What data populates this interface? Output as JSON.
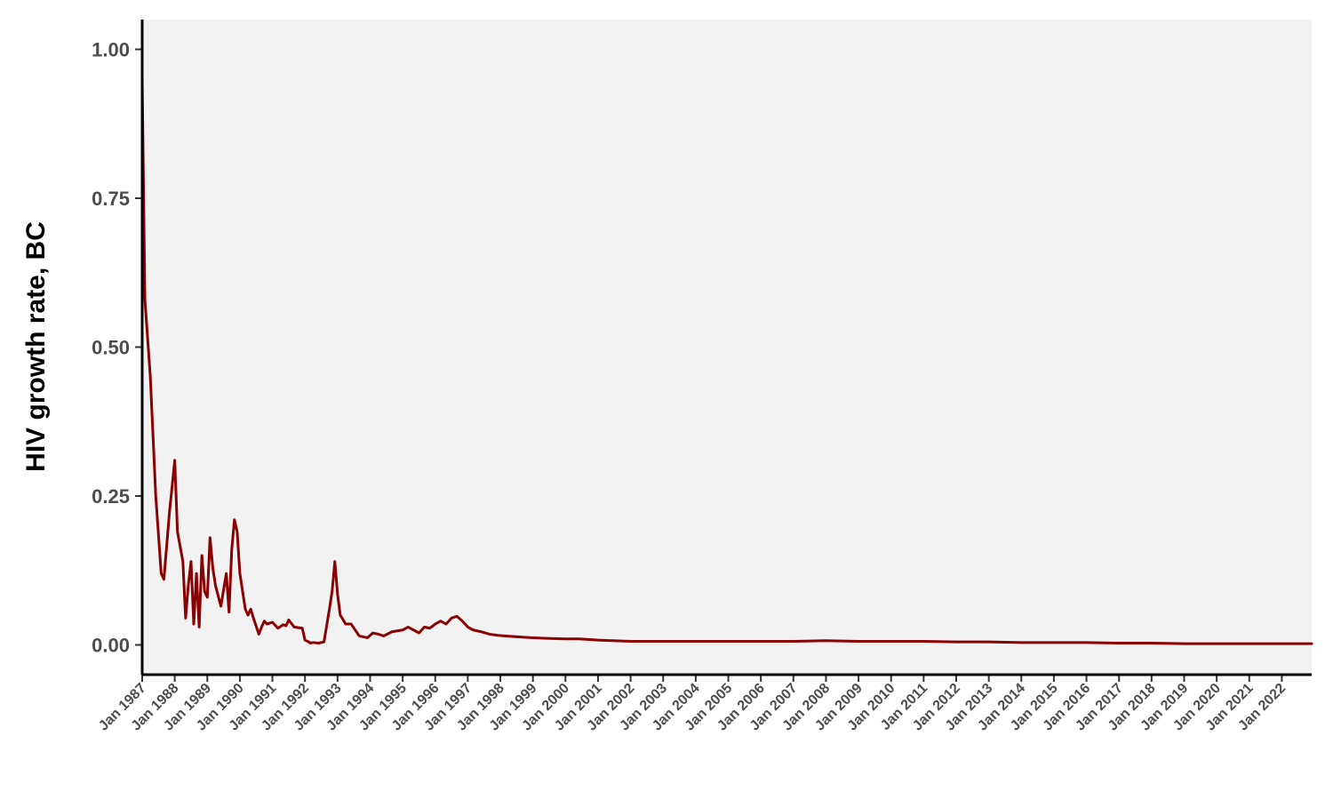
{
  "chart_data": {
    "type": "line",
    "title": "",
    "xlabel": "",
    "ylabel": "HIV growth rate, BC",
    "xlim": [
      "1987-01",
      "2022-12"
    ],
    "ylim": [
      -0.05,
      1.05
    ],
    "yticks": [
      {
        "value": 0.0,
        "label": "0.00"
      },
      {
        "value": 0.25,
        "label": "0.25"
      },
      {
        "value": 0.5,
        "label": "0.50"
      },
      {
        "value": 0.75,
        "label": "0.75"
      },
      {
        "value": 1.0,
        "label": "1.00"
      }
    ],
    "xticks": [
      {
        "value": "1987-01",
        "label": "Jan 1987"
      },
      {
        "value": "1988-01",
        "label": "Jan 1988"
      },
      {
        "value": "1989-01",
        "label": "Jan 1989"
      },
      {
        "value": "1990-01",
        "label": "Jan 1990"
      },
      {
        "value": "1991-01",
        "label": "Jan 1991"
      },
      {
        "value": "1992-01",
        "label": "Jan 1992"
      },
      {
        "value": "1993-01",
        "label": "Jan 1993"
      },
      {
        "value": "1994-01",
        "label": "Jan 1994"
      },
      {
        "value": "1995-01",
        "label": "Jan 1995"
      },
      {
        "value": "1996-01",
        "label": "Jan 1996"
      },
      {
        "value": "1997-01",
        "label": "Jan 1997"
      },
      {
        "value": "1998-01",
        "label": "Jan 1998"
      },
      {
        "value": "1999-01",
        "label": "Jan 1999"
      },
      {
        "value": "2000-01",
        "label": "Jan 2000"
      },
      {
        "value": "2001-01",
        "label": "Jan 2001"
      },
      {
        "value": "2002-01",
        "label": "Jan 2002"
      },
      {
        "value": "2003-01",
        "label": "Jan 2003"
      },
      {
        "value": "2004-01",
        "label": "Jan 2004"
      },
      {
        "value": "2005-01",
        "label": "Jan 2005"
      },
      {
        "value": "2006-01",
        "label": "Jan 2006"
      },
      {
        "value": "2007-01",
        "label": "Jan 2007"
      },
      {
        "value": "2008-01",
        "label": "Jan 2008"
      },
      {
        "value": "2009-01",
        "label": "Jan 2009"
      },
      {
        "value": "2010-01",
        "label": "Jan 2010"
      },
      {
        "value": "2011-01",
        "label": "Jan 2011"
      },
      {
        "value": "2012-01",
        "label": "Jan 2012"
      },
      {
        "value": "2013-01",
        "label": "Jan 2013"
      },
      {
        "value": "2014-01",
        "label": "Jan 2014"
      },
      {
        "value": "2015-01",
        "label": "Jan 2015"
      },
      {
        "value": "2016-01",
        "label": "Jan 2016"
      },
      {
        "value": "2017-01",
        "label": "Jan 2017"
      },
      {
        "value": "2018-01",
        "label": "Jan 2018"
      },
      {
        "value": "2019-01",
        "label": "Jan 2019"
      },
      {
        "value": "2020-01",
        "label": "Jan 2020"
      },
      {
        "value": "2021-01",
        "label": "Jan 2021"
      },
      {
        "value": "2022-01",
        "label": "Jan 2022"
      }
    ],
    "grid": false,
    "legend": "none",
    "colors": {
      "line": "#8b0000",
      "panel_background": "#f2f2f2",
      "axis": "#000000",
      "tick_label": "#4d4d4d",
      "axis_title": "#000000"
    },
    "series": [
      {
        "x": [
          "1987-01",
          "1987-02",
          "1987-04",
          "1987-06",
          "1987-08",
          "1987-09",
          "1987-11",
          "1988-01",
          "1988-02",
          "1988-04",
          "1988-05",
          "1988-06",
          "1988-07",
          "1988-08",
          "1988-09",
          "1988-10",
          "1988-11",
          "1988-12",
          "1989-01",
          "1989-02",
          "1989-03",
          "1989-04",
          "1989-06",
          "1989-08",
          "1989-09",
          "1989-10",
          "1989-11",
          "1989-12",
          "1990-01",
          "1990-03",
          "1990-04",
          "1990-05",
          "1990-06",
          "1990-08",
          "1990-09",
          "1990-10",
          "1990-11",
          "1991-01",
          "1991-03",
          "1991-05",
          "1991-06",
          "1991-07",
          "1991-09",
          "1991-12",
          "1992-01",
          "1992-02",
          "1992-03",
          "1992-04",
          "1992-06",
          "1992-08",
          "1992-10",
          "1992-11",
          "1992-12",
          "1993-01",
          "1993-02",
          "1993-04",
          "1993-06",
          "1993-09",
          "1993-12",
          "1994-02",
          "1994-04",
          "1994-06",
          "1994-09",
          "1995-01",
          "1995-03",
          "1995-05",
          "1995-07",
          "1995-09",
          "1995-11",
          "1996-01",
          "1996-03",
          "1996-05",
          "1996-07",
          "1996-09",
          "1996-11",
          "1997-01",
          "1997-03",
          "1997-06",
          "1997-09",
          "1997-12",
          "1998-03",
          "1998-06",
          "1998-09",
          "1999-01",
          "1999-06",
          "2000-01",
          "2000-06",
          "2001-01",
          "2002-01",
          "2003-01",
          "2004-01",
          "2005-01",
          "2006-01",
          "2007-01",
          "2008-01",
          "2009-01",
          "2010-01",
          "2011-01",
          "2012-01",
          "2013-01",
          "2014-01",
          "2015-01",
          "2016-01",
          "2017-01",
          "2018-01",
          "2019-01",
          "2020-01",
          "2021-01",
          "2022-01",
          "2022-12"
        ],
        "y": [
          0.95,
          0.58,
          0.45,
          0.25,
          0.12,
          0.11,
          0.22,
          0.31,
          0.19,
          0.14,
          0.045,
          0.1,
          0.14,
          0.035,
          0.12,
          0.03,
          0.15,
          0.09,
          0.08,
          0.18,
          0.13,
          0.1,
          0.065,
          0.12,
          0.055,
          0.16,
          0.21,
          0.19,
          0.12,
          0.06,
          0.05,
          0.06,
          0.045,
          0.018,
          0.03,
          0.04,
          0.035,
          0.038,
          0.028,
          0.034,
          0.032,
          0.042,
          0.03,
          0.028,
          0.008,
          0.006,
          0.003,
          0.004,
          0.003,
          0.005,
          0.06,
          0.09,
          0.14,
          0.085,
          0.05,
          0.035,
          0.035,
          0.015,
          0.012,
          0.02,
          0.018,
          0.015,
          0.022,
          0.025,
          0.03,
          0.025,
          0.02,
          0.03,
          0.028,
          0.035,
          0.04,
          0.035,
          0.045,
          0.048,
          0.04,
          0.03,
          0.025,
          0.022,
          0.018,
          0.016,
          0.015,
          0.014,
          0.013,
          0.012,
          0.011,
          0.01,
          0.01,
          0.008,
          0.006,
          0.006,
          0.006,
          0.006,
          0.006,
          0.006,
          0.007,
          0.006,
          0.006,
          0.006,
          0.005,
          0.005,
          0.004,
          0.004,
          0.004,
          0.003,
          0.003,
          0.002,
          0.002,
          0.002,
          0.002,
          0.002
        ]
      }
    ]
  }
}
